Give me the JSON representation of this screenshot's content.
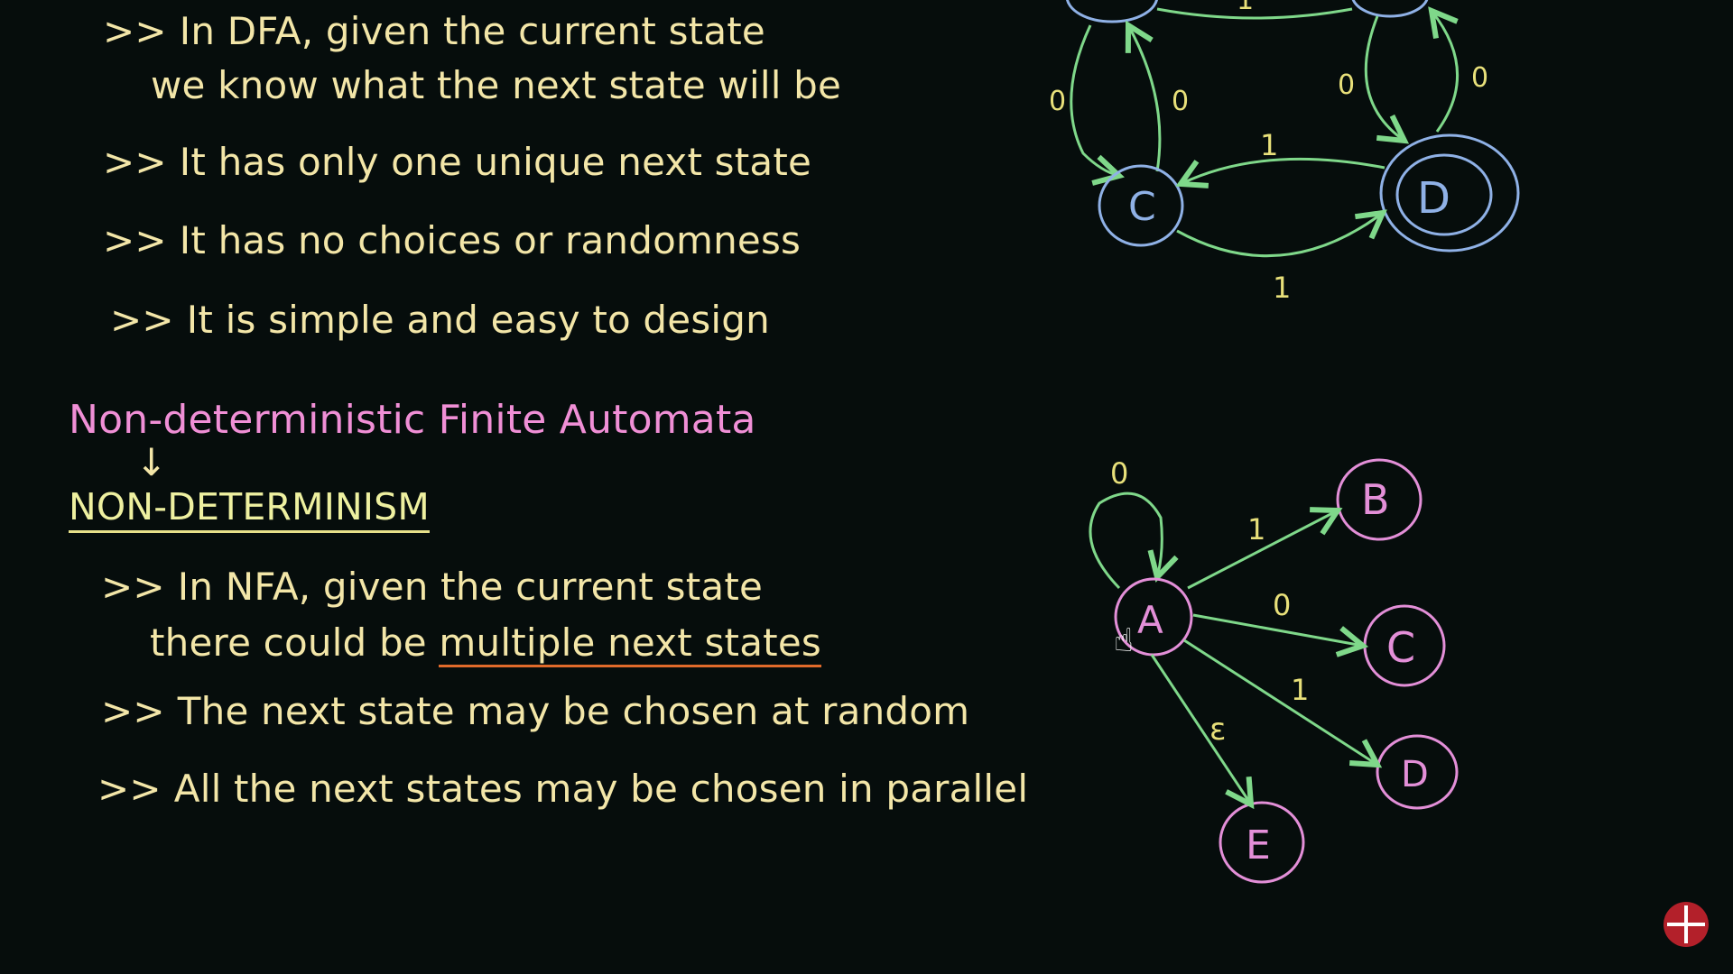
{
  "colors": {
    "background": "#060d0c",
    "bullet_text": "#f3e6a8",
    "heading": "#f08fd6",
    "subheading": "#eef0a0",
    "dfa_state": "#8fb1e6",
    "dfa_edge": "#7fd88a",
    "nfa_state": "#e38fd8",
    "nfa_edge": "#7fd88a",
    "edge_label": "#e8e07a",
    "underline_highlight": "#e06a2a",
    "logo": "#b3202a"
  },
  "dfa_bullets": [
    {
      "marker": ">>",
      "text": "In DFA, given the current state"
    },
    {
      "marker": "",
      "text": "we know what the next state will be"
    },
    {
      "marker": ">>",
      "text": "It has only one unique next state"
    },
    {
      "marker": ">>",
      "text": "It has no choices or randomness"
    },
    {
      "marker": ">>",
      "text": "It is simple and easy to design"
    }
  ],
  "nfa_heading": "Non-deterministic Finite Automata",
  "arrow_symbol": "↓",
  "nfa_subheading": "NON-DETERMINISM",
  "nfa_bullets": {
    "b1_marker": ">>",
    "b1_text": "In NFA, given the current state",
    "b2_prefix": "there could be ",
    "b2_highlight": "multiple next states",
    "b3_marker": ">>",
    "b3_text": "The next state may be chosen at random",
    "b4_marker": ">>",
    "b4_text": "All the next states may be chosen in parallel"
  },
  "dfa_diagram": {
    "states": [
      "C",
      "D"
    ],
    "accepting_state": "D",
    "edge_labels": {
      "top_left_down": "0",
      "top_left_up": "0",
      "top_right_down": "0",
      "top_right_up": "0",
      "c_to_d_upper": "1",
      "c_to_d_lower": "1",
      "top_partial": "1"
    }
  },
  "nfa_diagram": {
    "states": [
      "A",
      "B",
      "C",
      "D",
      "E"
    ],
    "edge_labels": {
      "a_self": "0",
      "a_to_b": "1",
      "a_to_c": "0",
      "a_to_d": "1",
      "a_to_e": "ε"
    }
  }
}
